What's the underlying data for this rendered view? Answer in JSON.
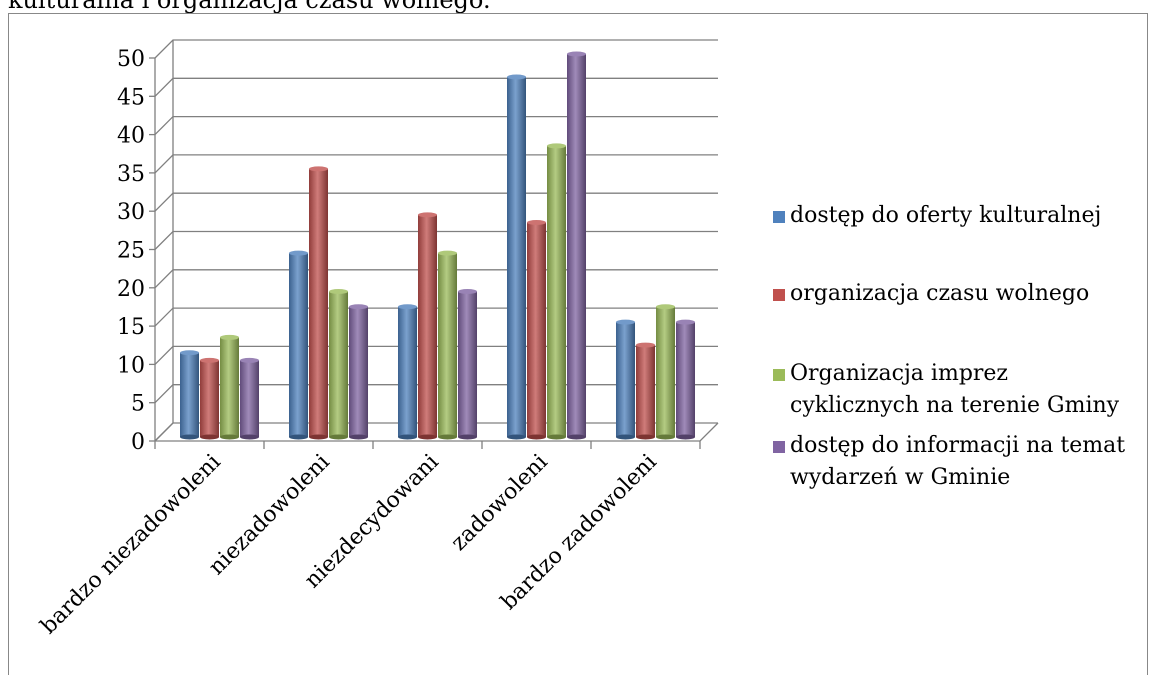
{
  "page": {
    "top_text": "kulturalna i organizacja czasu wolnego."
  },
  "chart_data": {
    "type": "bar",
    "title": "",
    "xlabel": "",
    "ylabel": "",
    "ylim": [
      0,
      50
    ],
    "yticks": [
      0,
      5,
      10,
      15,
      20,
      25,
      30,
      35,
      40,
      45,
      50
    ],
    "grid": true,
    "legend_position": "right",
    "categories": [
      "bardzo niezadowoleni",
      "niezadowoleni",
      "niezdecydowani",
      "zadowoleni",
      "bardzo zadowoleni"
    ],
    "series": [
      {
        "name": "dostęp do oferty kulturalnej",
        "color": "#4f81bd",
        "values": [
          11,
          24,
          17,
          47,
          15
        ]
      },
      {
        "name": "organizacja czasu wolnego",
        "color": "#c0504d",
        "values": [
          10,
          35,
          29,
          28,
          12
        ]
      },
      {
        "name": "Organizacja imprez cyklicznych na terenie Gminy",
        "color": "#9bbb59",
        "values": [
          13,
          19,
          24,
          38,
          17
        ]
      },
      {
        "name": "dostęp do informacji na temat wydarzeń w Gminie",
        "color": "#8064a2",
        "values": [
          10,
          17,
          19,
          50,
          15
        ]
      }
    ]
  }
}
